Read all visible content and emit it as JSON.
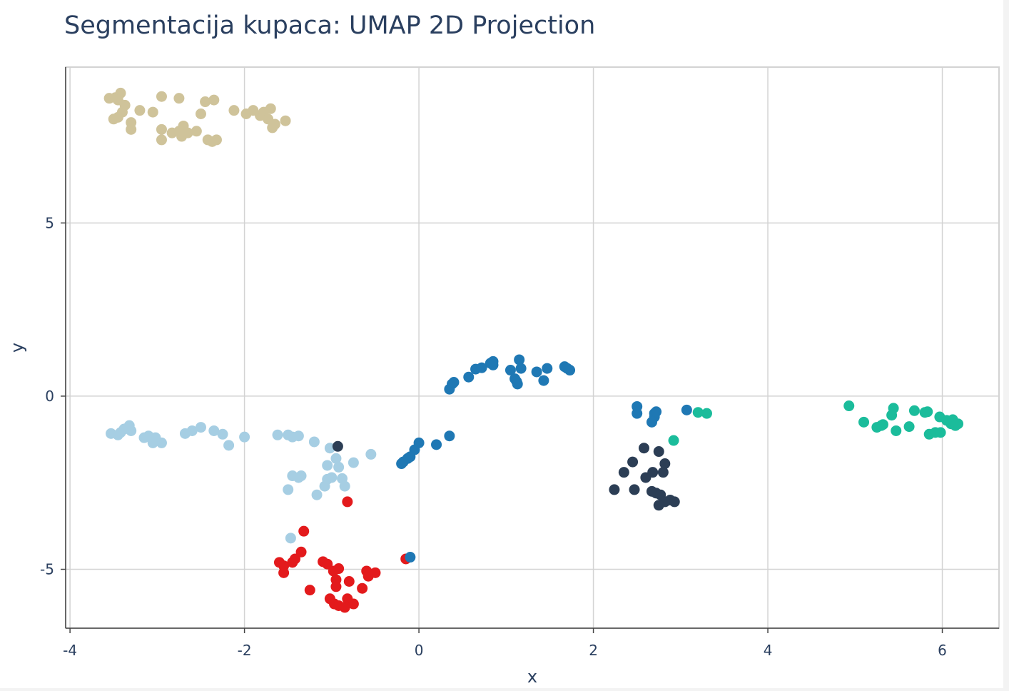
{
  "chart_data": {
    "type": "scatter",
    "title": "Segmentacija kupaca: UMAP 2D Projection",
    "xlabel": "x",
    "ylabel": "y",
    "xlim": [
      -4.05,
      6.65
    ],
    "ylim": [
      -6.7,
      9.5
    ],
    "xticks": [
      -4,
      -2,
      0,
      2,
      4,
      6
    ],
    "xtick_labels": [
      "-4",
      "-2",
      "0",
      "2",
      "4",
      "6"
    ],
    "yticks": [
      -5,
      0,
      5
    ],
    "ytick_labels": [
      "-5",
      "0",
      "5"
    ],
    "grid": true,
    "legend": "none",
    "series": [
      {
        "color": "#cfc39a",
        "points": [
          [
            -3.55,
            8.6
          ],
          [
            -3.48,
            8.62
          ],
          [
            -3.42,
            8.75
          ],
          [
            -3.45,
            8.55
          ],
          [
            -3.37,
            8.4
          ],
          [
            -3.4,
            8.2
          ],
          [
            -3.45,
            8.05
          ],
          [
            -3.5,
            8.0
          ],
          [
            -3.3,
            7.9
          ],
          [
            -3.3,
            7.7
          ],
          [
            -3.2,
            8.25
          ],
          [
            -3.05,
            8.2
          ],
          [
            -2.95,
            8.65
          ],
          [
            -2.95,
            7.7
          ],
          [
            -2.95,
            7.4
          ],
          [
            -2.83,
            7.6
          ],
          [
            -2.75,
            7.65
          ],
          [
            -2.75,
            8.6
          ],
          [
            -2.7,
            7.8
          ],
          [
            -2.72,
            7.5
          ],
          [
            -2.65,
            7.6
          ],
          [
            -2.55,
            7.65
          ],
          [
            -2.5,
            8.15
          ],
          [
            -2.45,
            8.5
          ],
          [
            -2.42,
            7.4
          ],
          [
            -2.37,
            7.35
          ],
          [
            -2.35,
            8.55
          ],
          [
            -2.32,
            7.4
          ],
          [
            -2.12,
            8.25
          ],
          [
            -1.98,
            8.15
          ],
          [
            -1.9,
            8.25
          ],
          [
            -1.82,
            8.1
          ],
          [
            -1.78,
            8.2
          ],
          [
            -1.73,
            8.0
          ],
          [
            -1.7,
            8.3
          ],
          [
            -1.68,
            7.75
          ],
          [
            -1.65,
            7.85
          ],
          [
            -1.53,
            7.95
          ]
        ]
      },
      {
        "color": "#a6cee3",
        "points": [
          [
            -3.53,
            -1.08
          ],
          [
            -3.45,
            -1.12
          ],
          [
            -3.42,
            -1.05
          ],
          [
            -3.38,
            -0.95
          ],
          [
            -3.32,
            -0.85
          ],
          [
            -3.3,
            -1.0
          ],
          [
            -3.15,
            -1.2
          ],
          [
            -3.1,
            -1.15
          ],
          [
            -3.05,
            -1.35
          ],
          [
            -3.02,
            -1.2
          ],
          [
            -2.95,
            -1.35
          ],
          [
            -2.68,
            -1.08
          ],
          [
            -2.6,
            -1.0
          ],
          [
            -2.5,
            -0.9
          ],
          [
            -2.35,
            -1.0
          ],
          [
            -2.25,
            -1.1
          ],
          [
            -2.18,
            -1.42
          ],
          [
            -2.0,
            -1.18
          ],
          [
            -1.62,
            -1.12
          ],
          [
            -1.5,
            -1.12
          ],
          [
            -1.45,
            -1.18
          ],
          [
            -1.38,
            -1.15
          ],
          [
            -1.2,
            -1.32
          ],
          [
            -1.02,
            -1.5
          ],
          [
            -0.95,
            -1.8
          ],
          [
            -0.92,
            -2.05
          ],
          [
            -1.05,
            -2.0
          ],
          [
            -1.45,
            -2.3
          ],
          [
            -1.38,
            -2.35
          ],
          [
            -1.35,
            -2.3
          ],
          [
            -1.05,
            -2.4
          ],
          [
            -0.88,
            -2.38
          ],
          [
            -1.0,
            -2.35
          ],
          [
            -0.85,
            -2.6
          ],
          [
            -1.08,
            -2.6
          ],
          [
            -0.75,
            -1.92
          ],
          [
            -0.55,
            -1.68
          ],
          [
            -1.5,
            -2.7
          ],
          [
            -1.17,
            -2.85
          ],
          [
            -1.47,
            -4.1
          ]
        ]
      },
      {
        "color": "#2c3e55",
        "points": [
          [
            -0.93,
            -1.45
          ],
          [
            2.58,
            -1.5
          ],
          [
            2.75,
            -1.6
          ],
          [
            2.45,
            -1.9
          ],
          [
            2.82,
            -1.95
          ],
          [
            2.35,
            -2.2
          ],
          [
            2.6,
            -2.35
          ],
          [
            2.68,
            -2.2
          ],
          [
            2.8,
            -2.2
          ],
          [
            2.24,
            -2.7
          ],
          [
            2.47,
            -2.7
          ],
          [
            2.67,
            -2.75
          ],
          [
            2.72,
            -2.8
          ],
          [
            2.77,
            -2.85
          ],
          [
            2.88,
            -3.0
          ],
          [
            2.82,
            -3.05
          ],
          [
            2.75,
            -3.15
          ],
          [
            2.93,
            -3.05
          ]
        ]
      },
      {
        "color": "#e31a1c",
        "points": [
          [
            -0.82,
            -3.05
          ],
          [
            -1.32,
            -3.9
          ],
          [
            -1.35,
            -4.5
          ],
          [
            -1.6,
            -4.8
          ],
          [
            -1.55,
            -4.9
          ],
          [
            -1.45,
            -4.8
          ],
          [
            -1.42,
            -4.7
          ],
          [
            -1.55,
            -5.1
          ],
          [
            -1.1,
            -4.78
          ],
          [
            -1.05,
            -4.85
          ],
          [
            -0.98,
            -5.05
          ],
          [
            -0.92,
            -4.98
          ],
          [
            -0.95,
            -5.3
          ],
          [
            -0.8,
            -5.35
          ],
          [
            -0.6,
            -5.05
          ],
          [
            -0.58,
            -5.2
          ],
          [
            -0.5,
            -5.1
          ],
          [
            -1.25,
            -5.6
          ],
          [
            -0.65,
            -5.55
          ],
          [
            -0.95,
            -5.5
          ],
          [
            -1.02,
            -5.85
          ],
          [
            -0.97,
            -6.0
          ],
          [
            -0.92,
            -6.05
          ],
          [
            -0.85,
            -6.1
          ],
          [
            -0.82,
            -5.85
          ],
          [
            -0.75,
            -6.0
          ],
          [
            -0.15,
            -4.7
          ]
        ]
      },
      {
        "color": "#1f78b4",
        "points": [
          [
            0.35,
            0.2
          ],
          [
            0.38,
            0.35
          ],
          [
            0.4,
            0.4
          ],
          [
            0.57,
            0.55
          ],
          [
            0.65,
            0.78
          ],
          [
            0.72,
            0.82
          ],
          [
            0.82,
            0.95
          ],
          [
            0.85,
            0.9
          ],
          [
            0.85,
            1.0
          ],
          [
            1.05,
            0.75
          ],
          [
            1.1,
            0.5
          ],
          [
            1.12,
            0.42
          ],
          [
            1.13,
            0.35
          ],
          [
            1.15,
            1.05
          ],
          [
            1.17,
            0.8
          ],
          [
            1.35,
            0.7
          ],
          [
            1.43,
            0.45
          ],
          [
            1.47,
            0.8
          ],
          [
            1.67,
            0.85
          ],
          [
            1.7,
            0.8
          ],
          [
            1.73,
            0.75
          ],
          [
            0.35,
            -1.15
          ],
          [
            0.2,
            -1.4
          ],
          [
            0.0,
            -1.35
          ],
          [
            -0.05,
            -1.55
          ],
          [
            -0.1,
            -1.75
          ],
          [
            -0.13,
            -1.8
          ],
          [
            -0.18,
            -1.9
          ],
          [
            -0.2,
            -1.95
          ],
          [
            -0.1,
            -4.65
          ],
          [
            2.5,
            -0.3
          ],
          [
            2.5,
            -0.5
          ],
          [
            2.7,
            -0.5
          ],
          [
            2.7,
            -0.6
          ],
          [
            2.67,
            -0.75
          ],
          [
            2.72,
            -0.45
          ],
          [
            3.07,
            -0.4
          ]
        ]
      },
      {
        "color": "#1bbc9b",
        "points": [
          [
            2.92,
            -1.28
          ],
          [
            3.2,
            -0.47
          ],
          [
            3.3,
            -0.5
          ],
          [
            4.93,
            -0.28
          ],
          [
            5.1,
            -0.75
          ],
          [
            5.25,
            -0.9
          ],
          [
            5.3,
            -0.85
          ],
          [
            5.32,
            -0.82
          ],
          [
            5.42,
            -0.55
          ],
          [
            5.44,
            -0.35
          ],
          [
            5.47,
            -1.0
          ],
          [
            5.62,
            -0.88
          ],
          [
            5.68,
            -0.42
          ],
          [
            5.8,
            -0.47
          ],
          [
            5.83,
            -0.45
          ],
          [
            5.85,
            -1.1
          ],
          [
            5.92,
            -1.05
          ],
          [
            5.97,
            -0.6
          ],
          [
            5.98,
            -1.05
          ],
          [
            6.05,
            -0.7
          ],
          [
            6.1,
            -0.8
          ],
          [
            6.12,
            -0.68
          ],
          [
            6.15,
            -0.85
          ],
          [
            6.18,
            -0.8
          ]
        ]
      }
    ]
  }
}
